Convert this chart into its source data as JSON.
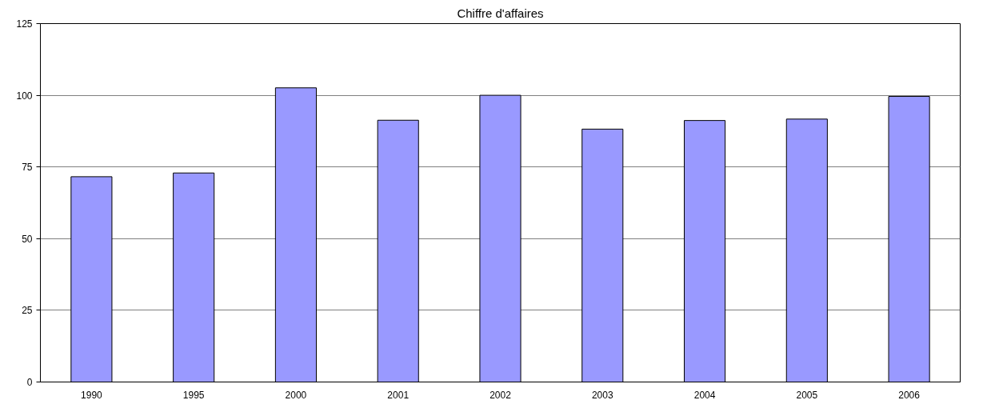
{
  "chart_data": {
    "type": "bar",
    "title": "Chiffre d'affaires",
    "categories": [
      "1990",
      "1995",
      "2000",
      "2001",
      "2002",
      "2003",
      "2004",
      "2005",
      "2006"
    ],
    "values": [
      71.6,
      72.9,
      102.6,
      91.3,
      100,
      88.2,
      91.2,
      91.7,
      99.6
    ],
    "color": "#9999ff",
    "ylim": [
      0,
      125
    ],
    "yticks": [
      0,
      25,
      50,
      75,
      100,
      125
    ],
    "grid": "y"
  }
}
